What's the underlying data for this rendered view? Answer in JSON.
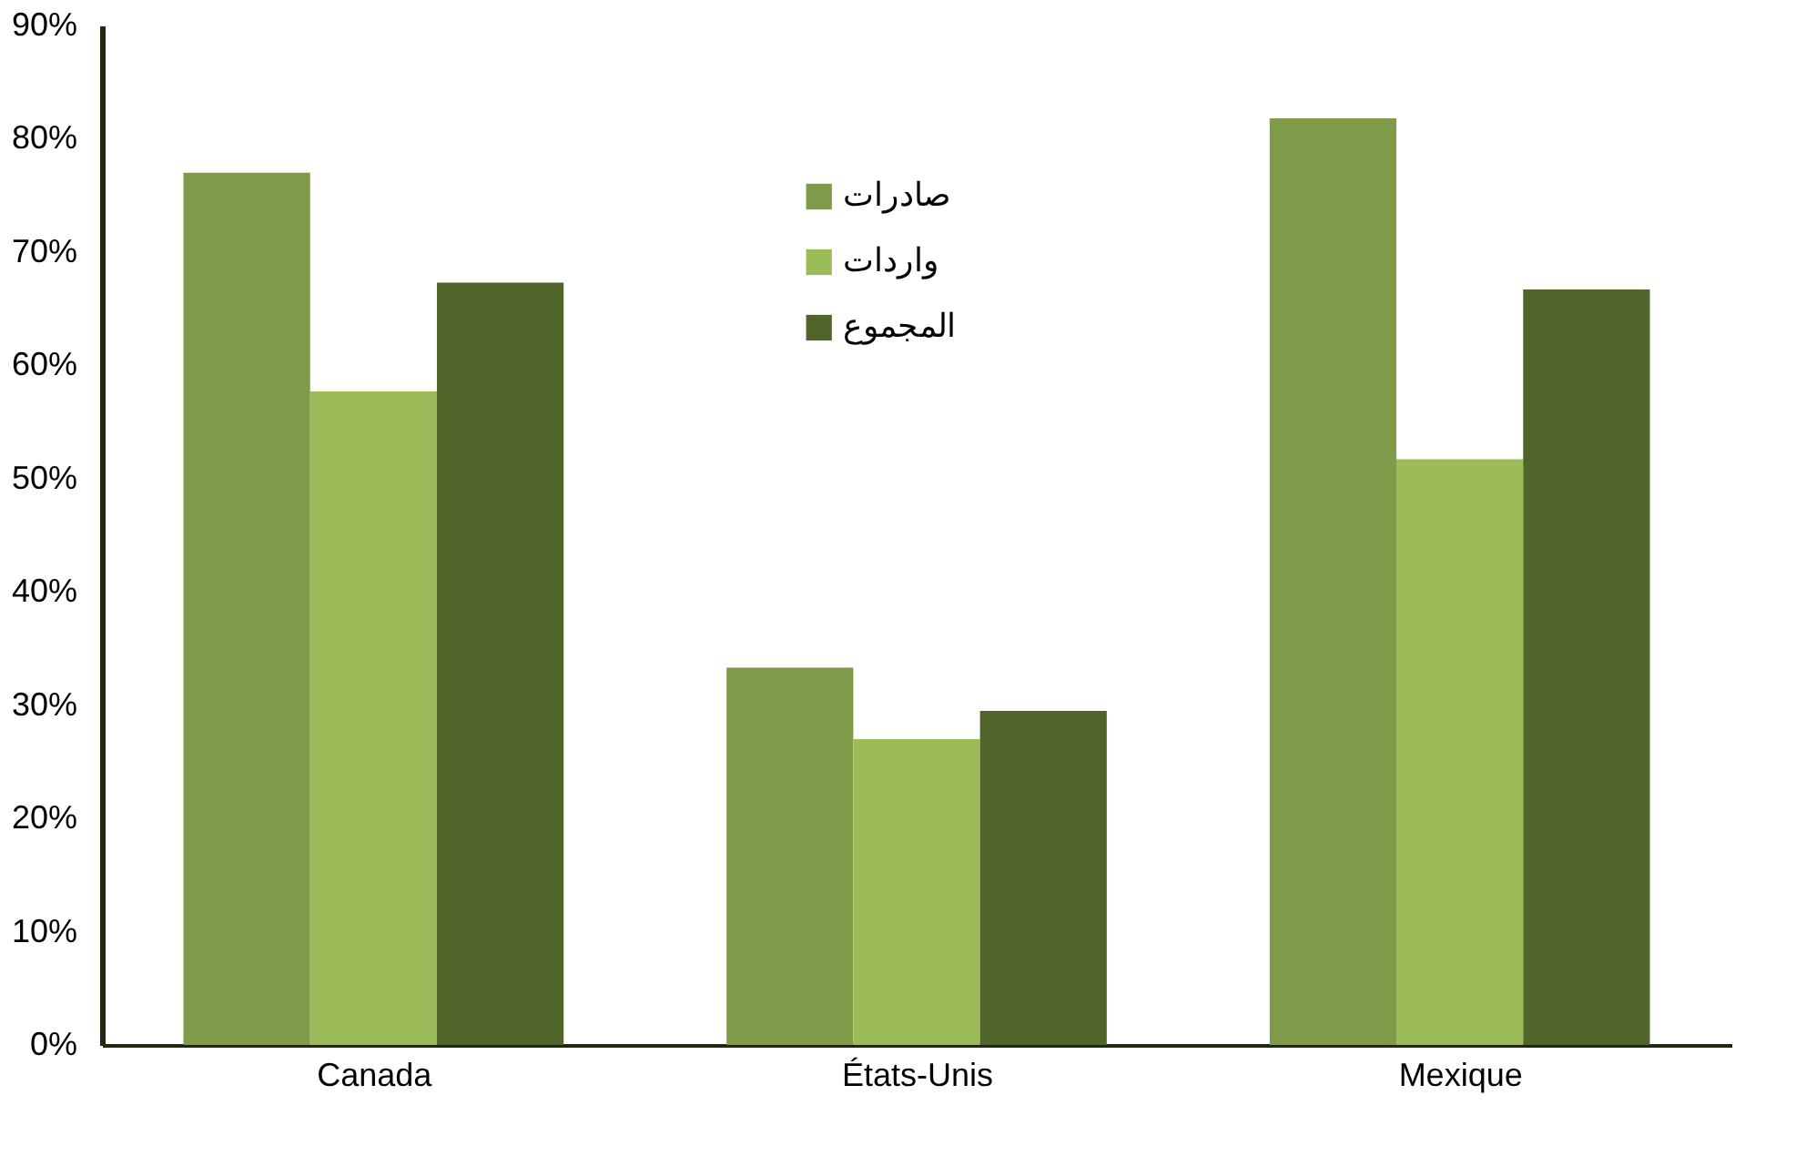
{
  "chart_data": {
    "type": "bar",
    "categories": [
      "Canada",
      "États-Unis",
      "Mexique"
    ],
    "series": [
      {
        "name": "صادرات",
        "color": "#7f9a48",
        "values": [
          77,
          33.3,
          81.8
        ]
      },
      {
        "name": "واردات",
        "color": "#9bbb59",
        "values": [
          57.7,
          27,
          51.7
        ]
      },
      {
        "name": "المجموع",
        "color": "#51652a",
        "values": [
          67.3,
          29.5,
          66.7
        ]
      }
    ],
    "ylim": [
      0,
      90
    ],
    "yticks": [
      {
        "value": 0,
        "label": "0%"
      },
      {
        "value": 10,
        "label": "10%"
      },
      {
        "value": 20,
        "label": "20%"
      },
      {
        "value": 30,
        "label": "30%"
      },
      {
        "value": 40,
        "label": "40%"
      },
      {
        "value": 50,
        "label": "50%"
      },
      {
        "value": 60,
        "label": "60%"
      },
      {
        "value": 70,
        "label": "70%"
      },
      {
        "value": 80,
        "label": "80%"
      },
      {
        "value": 90,
        "label": "90%"
      }
    ],
    "grid": false,
    "legend": "top"
  }
}
